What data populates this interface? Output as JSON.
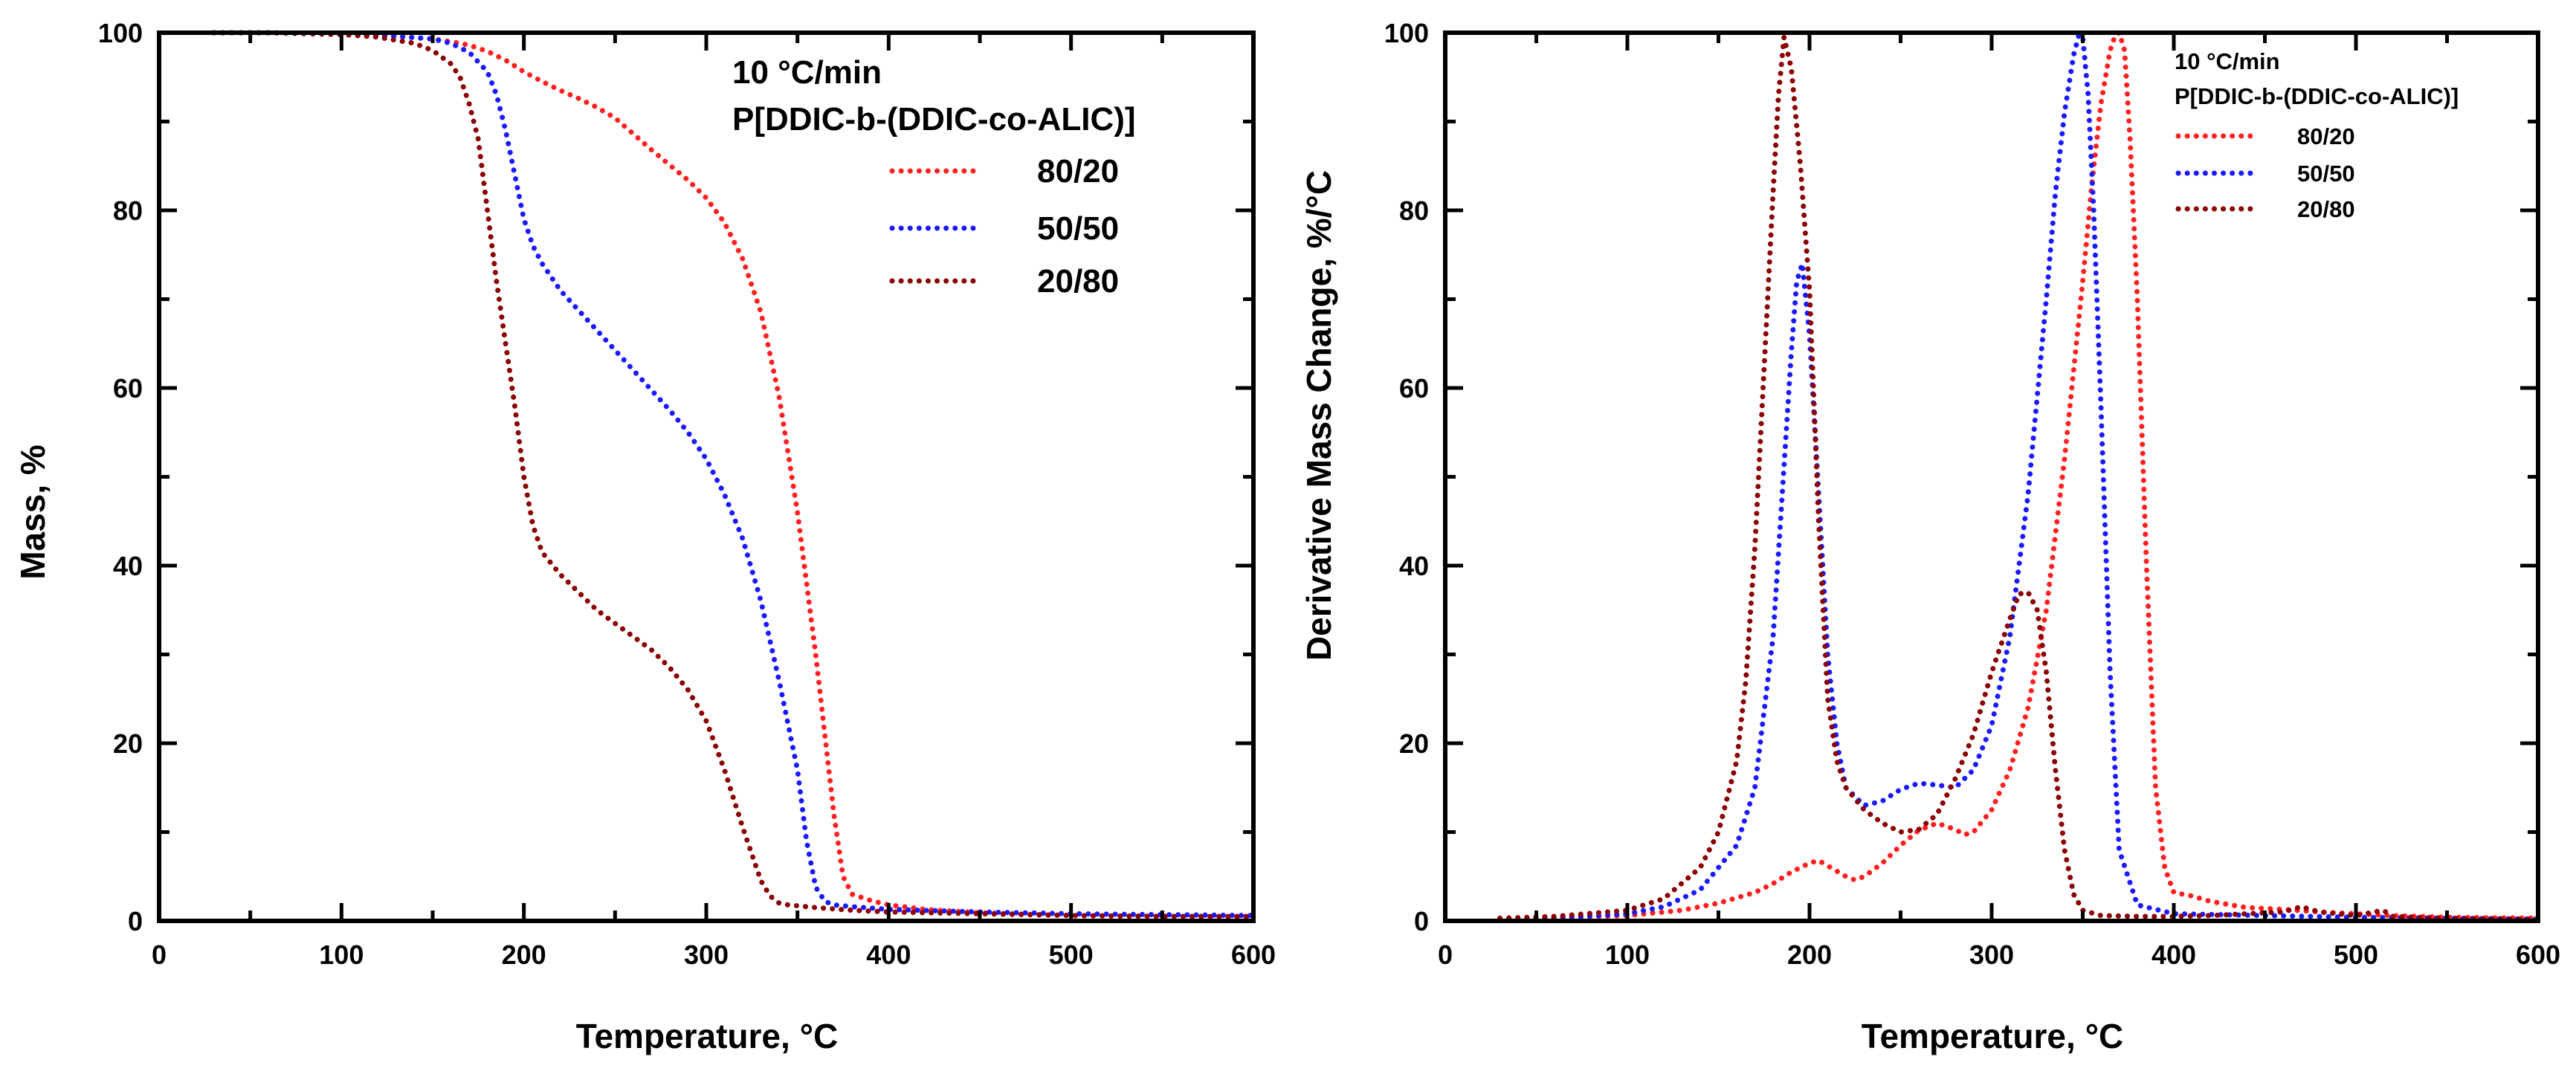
{
  "chart_data": [
    {
      "type": "line",
      "xlabel": "Temperature, °C",
      "ylabel": "Mass, %",
      "xlim": [
        0,
        600
      ],
      "ylim": [
        0,
        100
      ],
      "xticks": [
        0,
        100,
        200,
        300,
        400,
        500,
        600
      ],
      "yticks": [
        0,
        20,
        40,
        60,
        80,
        100
      ],
      "grid": false,
      "legend": {
        "placement": "top-right",
        "title_lines": [
          "10 °C/min",
          "P[DDIC-b-(DDIC-co-ALIC)]"
        ]
      },
      "series": [
        {
          "name": "80/20",
          "color": "#ff2020",
          "x": [
            30,
            60,
            100,
            130,
            150,
            160,
            170,
            180,
            190,
            200,
            210,
            220,
            230,
            240,
            250,
            260,
            270,
            280,
            290,
            300,
            310,
            320,
            330,
            340,
            350,
            360,
            370,
            375,
            380,
            390,
            400,
            420,
            450,
            500,
            550,
            600
          ],
          "y": [
            100,
            100,
            99.8,
            99.6,
            99.3,
            99.0,
            98.6,
            97.9,
            96.9,
            95.6,
            94.5,
            93.5,
            92.6,
            91.6,
            90.4,
            88.6,
            86.8,
            85.1,
            83.4,
            81.4,
            78.6,
            74.5,
            68.5,
            59,
            46,
            30,
            12,
            5,
            3,
            2.3,
            1.8,
            1.3,
            0.9,
            0.6,
            0.5,
            0.4
          ]
        },
        {
          "name": "50/50",
          "color": "#1a1aff",
          "x": [
            30,
            60,
            100,
            130,
            150,
            160,
            170,
            180,
            185,
            190,
            195,
            200,
            205,
            210,
            220,
            240,
            260,
            280,
            290,
            300,
            310,
            320,
            330,
            340,
            350,
            355,
            360,
            365,
            370,
            380,
            400,
            450,
            500,
            550,
            600
          ],
          "y": [
            100,
            100,
            99.8,
            99.6,
            99.3,
            98.8,
            97.8,
            95.6,
            93,
            89,
            84,
            79,
            76,
            74,
            71,
            66.5,
            62,
            57.5,
            55,
            52,
            48,
            43,
            36,
            27,
            17,
            9,
            3.8,
            2.2,
            1.8,
            1.6,
            1.3,
            1.0,
            0.8,
            0.7,
            0.6
          ]
        },
        {
          "name": "20/80",
          "color": "#8b0000",
          "x": [
            30,
            60,
            100,
            120,
            140,
            150,
            160,
            165,
            170,
            175,
            180,
            185,
            190,
            195,
            200,
            205,
            210,
            220,
            230,
            240,
            250,
            260,
            270,
            280,
            290,
            300,
            310,
            320,
            330,
            335,
            340,
            345,
            350,
            360,
            380,
            400,
            450,
            500,
            550,
            600
          ],
          "y": [
            100,
            100,
            99.8,
            99.5,
            98.8,
            98.0,
            96.5,
            95.0,
            92.0,
            88.0,
            80.0,
            72.0,
            65.0,
            58.0,
            50.0,
            44.5,
            41.5,
            39.0,
            37.0,
            35.0,
            33.5,
            32.0,
            30.5,
            28.5,
            26.0,
            22.5,
            17.0,
            10.5,
            4.5,
            2.8,
            2.0,
            1.8,
            1.7,
            1.5,
            1.2,
            1.0,
            0.8,
            0.6,
            0.5,
            0.5
          ]
        }
      ]
    },
    {
      "type": "line",
      "xlabel": "Temperature, °C",
      "ylabel": "Derivative Mass Change, %/°C",
      "xlim": [
        0,
        600
      ],
      "ylim": [
        0,
        100
      ],
      "xticks": [
        0,
        100,
        200,
        300,
        400,
        500,
        600
      ],
      "yticks": [
        0,
        20,
        40,
        60,
        80,
        100
      ],
      "grid": false,
      "legend": {
        "placement": "top-right",
        "title_lines": [
          "10 °C/min",
          "P[DDIC-b-(DDIC-co-ALIC)]"
        ]
      },
      "series": [
        {
          "name": "80/20",
          "color": "#ff2020",
          "x": [
            30,
            60,
            100,
            130,
            150,
            170,
            180,
            190,
            200,
            205,
            210,
            220,
            225,
            230,
            240,
            250,
            260,
            270,
            280,
            285,
            290,
            300,
            310,
            320,
            330,
            340,
            345,
            350,
            355,
            360,
            365,
            368,
            370,
            373,
            376,
            380,
            385,
            390,
            395,
            400,
            410,
            420,
            440,
            460,
            480,
            500,
            520,
            550,
            600
          ],
          "y": [
            0.2,
            0.3,
            0.6,
            1.2,
            2.0,
            3.2,
            4.2,
            5.5,
            6.5,
            6.8,
            6.2,
            5.0,
            4.6,
            5.0,
            6.5,
            8.5,
            10.2,
            11.0,
            10.3,
            9.7,
            10.0,
            12.5,
            17.0,
            24.0,
            35.0,
            52.0,
            62.0,
            72.0,
            83.0,
            92.0,
            98.0,
            99.8,
            100,
            98.0,
            88.0,
            70.0,
            40.0,
            15.0,
            6.0,
            3.2,
            2.8,
            2.2,
            1.5,
            1.3,
            1.0,
            0.8,
            0.6,
            0.4,
            0.3
          ]
        },
        {
          "name": "50/50",
          "color": "#1a1aff",
          "x": [
            30,
            60,
            100,
            120,
            140,
            160,
            170,
            180,
            185,
            190,
            193,
            196,
            200,
            205,
            210,
            215,
            220,
            230,
            240,
            250,
            260,
            270,
            280,
            290,
            300,
            310,
            320,
            330,
            335,
            340,
            345,
            348,
            350,
            353,
            356,
            360,
            365,
            370,
            380,
            400,
            450,
            500,
            550,
            600
          ],
          "y": [
            0.2,
            0.3,
            0.8,
            1.6,
            3.5,
            8.5,
            15.0,
            32.0,
            48.0,
            64.0,
            72.0,
            74.0,
            66.0,
            48.0,
            30.0,
            20.0,
            15.0,
            13.0,
            13.5,
            14.8,
            15.5,
            15.3,
            15.0,
            17.0,
            22.0,
            32.0,
            48.0,
            70.0,
            82.0,
            91.0,
            97.5,
            99.8,
            99.5,
            93.0,
            80.0,
            58.0,
            28.0,
            8.0,
            1.8,
            0.8,
            0.6,
            0.4,
            0.3,
            0.2
          ]
        },
        {
          "name": "20/80",
          "color": "#8b0000",
          "x": [
            30,
            60,
            100,
            120,
            140,
            150,
            160,
            165,
            170,
            175,
            180,
            183,
            186,
            190,
            195,
            200,
            205,
            210,
            215,
            220,
            230,
            240,
            250,
            260,
            270,
            280,
            290,
            300,
            310,
            315,
            320,
            325,
            330,
            335,
            340,
            345,
            350,
            360,
            380,
            400,
            420,
            440,
            460,
            470,
            480,
            500,
            515,
            520,
            550,
            600
          ],
          "y": [
            0.3,
            0.5,
            1.2,
            2.5,
            6.0,
            10.0,
            18.0,
            27.0,
            42.0,
            62.0,
            82.0,
            93.0,
            99.5,
            96.0,
            85.0,
            71.0,
            45.0,
            25.0,
            18.0,
            15.0,
            12.5,
            11.0,
            10.0,
            10.3,
            12.0,
            16.0,
            21.0,
            28.0,
            34.0,
            36.8,
            37.0,
            35.0,
            28.0,
            17.0,
            8.0,
            3.0,
            1.2,
            0.6,
            0.5,
            0.5,
            0.6,
            0.8,
            1.0,
            1.6,
            1.0,
            0.6,
            1.2,
            0.5,
            0.3,
            0.2
          ]
        }
      ]
    }
  ]
}
